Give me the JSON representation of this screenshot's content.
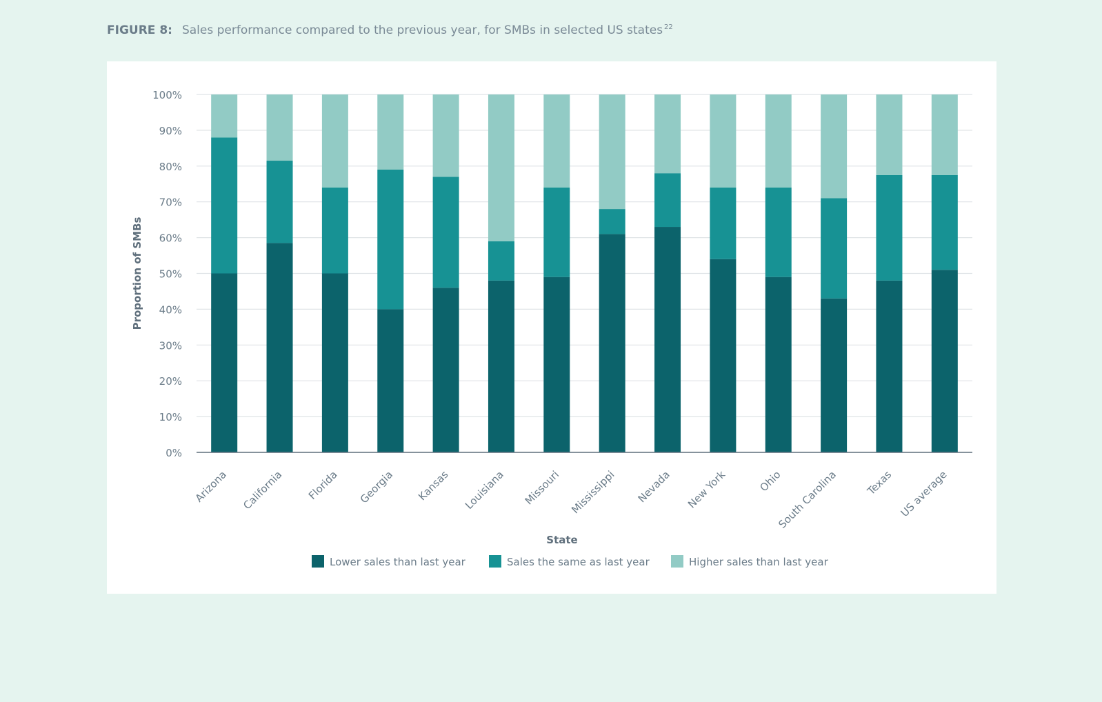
{
  "figure": {
    "label": "FIGURE 8:",
    "title": "Sales performance compared to the previous year, for SMBs in selected US states",
    "footnote": "22"
  },
  "chart_data": {
    "type": "bar",
    "stacked": true,
    "categories": [
      "Arizona",
      "California",
      "Florida",
      "Georgia",
      "Kansas",
      "Louisiana",
      "Missouri",
      "Mississippi",
      "Nevada",
      "New York",
      "Ohio",
      "South Carolina",
      "Texas",
      "US average"
    ],
    "series": [
      {
        "name": "Lower sales than last year",
        "color": "#0c636b",
        "values": [
          50,
          58.5,
          50,
          40,
          46,
          48,
          49,
          61,
          63,
          54,
          49,
          43,
          48,
          51
        ]
      },
      {
        "name": "Sales the same as last year",
        "color": "#179294",
        "values": [
          38,
          23,
          24,
          39,
          31,
          11,
          25,
          7,
          15,
          20,
          25,
          28,
          29.5,
          26.5
        ]
      },
      {
        "name": "Higher sales than last year",
        "color": "#92cbc5",
        "values": [
          12,
          18.5,
          26,
          21,
          23,
          41,
          26,
          32,
          22,
          26,
          26,
          29,
          22.5,
          22.5
        ]
      }
    ],
    "xlabel": "State",
    "ylabel": "Proportion of SMBs",
    "ylim": [
      0,
      100
    ],
    "yticks": [
      "0%",
      "10%",
      "20%",
      "30%",
      "40%",
      "50%",
      "60%",
      "70%",
      "80%",
      "90%",
      "100%"
    ],
    "grid": true,
    "legend_position": "bottom"
  }
}
